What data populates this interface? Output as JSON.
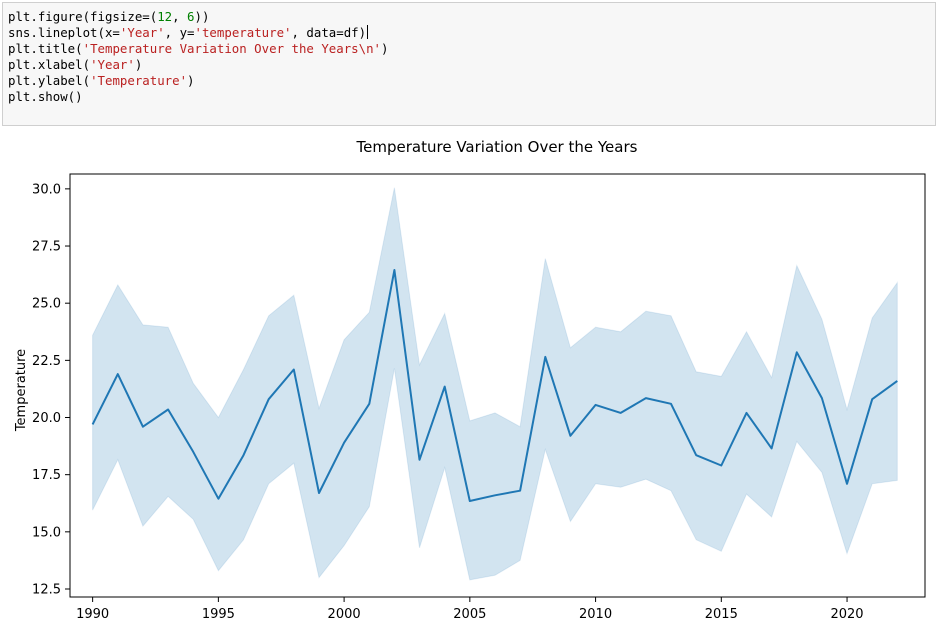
{
  "code": {
    "lines": [
      [
        {
          "t": "plt.figure(figsize=(",
          "c": ""
        },
        {
          "t": "12",
          "c": "num"
        },
        {
          "t": ", ",
          "c": ""
        },
        {
          "t": "6",
          "c": "num"
        },
        {
          "t": "))",
          "c": ""
        }
      ],
      [
        {
          "t": "sns.lineplot(x=",
          "c": ""
        },
        {
          "t": "'Year'",
          "c": "str"
        },
        {
          "t": ", y=",
          "c": ""
        },
        {
          "t": "'temperature'",
          "c": "str"
        },
        {
          "t": ", data=df)",
          "c": ""
        },
        {
          "t": "",
          "c": "caret"
        }
      ],
      [
        {
          "t": "plt.title(",
          "c": ""
        },
        {
          "t": "'Temperature Variation Over the Years\\n'",
          "c": "str"
        },
        {
          "t": ")",
          "c": ""
        }
      ],
      [
        {
          "t": "plt.xlabel(",
          "c": ""
        },
        {
          "t": "'Year'",
          "c": "str"
        },
        {
          "t": ")",
          "c": ""
        }
      ],
      [
        {
          "t": "plt.ylabel(",
          "c": ""
        },
        {
          "t": "'Temperature'",
          "c": "str"
        },
        {
          "t": ")",
          "c": ""
        }
      ],
      [
        {
          "t": "plt.show()",
          "c": ""
        }
      ]
    ]
  },
  "chart_data": {
    "type": "line",
    "title": "Temperature Variation Over the Years",
    "xlabel": "",
    "ylabel": "Temperature",
    "xlim": [
      1989.1,
      2023.1
    ],
    "ylim": [
      12.15,
      30.65
    ],
    "x_ticks": [
      1990,
      1995,
      2000,
      2005,
      2010,
      2015,
      2020
    ],
    "y_ticks": [
      12.5,
      15.0,
      17.5,
      20.0,
      22.5,
      25.0,
      27.5,
      30.0
    ],
    "y_tick_labels": [
      "12.5",
      "15.0",
      "17.5",
      "20.0",
      "22.5",
      "25.0",
      "27.5",
      "30.0"
    ],
    "grid": false,
    "line_color": "#1f77b4",
    "band_color": "#1f77b4",
    "x": [
      1990,
      1991,
      1992,
      1993,
      1994,
      1995,
      1996,
      1997,
      1998,
      1999,
      2000,
      2001,
      2002,
      2003,
      2004,
      2005,
      2006,
      2007,
      2008,
      2009,
      2010,
      2011,
      2012,
      2013,
      2014,
      2015,
      2016,
      2017,
      2018,
      2019,
      2020,
      2021,
      2022
    ],
    "series": [
      {
        "values": [
          19.7,
          21.9,
          19.6,
          20.35,
          18.5,
          16.45,
          18.35,
          20.8,
          22.1,
          16.7,
          18.9,
          20.6,
          26.45,
          18.15,
          21.35,
          16.35,
          16.6,
          16.8,
          22.65,
          19.2,
          20.55,
          20.2,
          20.85,
          20.6,
          18.35,
          17.9,
          20.2,
          18.65,
          22.85,
          20.85,
          17.1,
          20.8,
          21.6
        ],
        "ci_lower": [
          15.95,
          18.15,
          15.25,
          16.55,
          15.55,
          13.3,
          14.65,
          17.1,
          18.0,
          13.0,
          14.4,
          16.1,
          22.15,
          14.3,
          17.8,
          12.9,
          13.1,
          13.75,
          18.6,
          15.45,
          17.1,
          16.95,
          17.3,
          16.8,
          14.65,
          14.15,
          16.65,
          15.65,
          18.95,
          17.6,
          14.05,
          17.1,
          17.25
        ],
        "ci_upper": [
          23.6,
          25.8,
          24.05,
          23.95,
          21.5,
          20.0,
          22.1,
          24.45,
          25.35,
          20.4,
          23.4,
          24.6,
          30.05,
          22.3,
          24.55,
          19.85,
          20.2,
          19.6,
          26.95,
          23.05,
          23.95,
          23.75,
          24.65,
          24.45,
          22.0,
          21.8,
          23.75,
          21.75,
          26.65,
          24.3,
          20.35,
          24.35,
          25.9
        ]
      }
    ]
  }
}
